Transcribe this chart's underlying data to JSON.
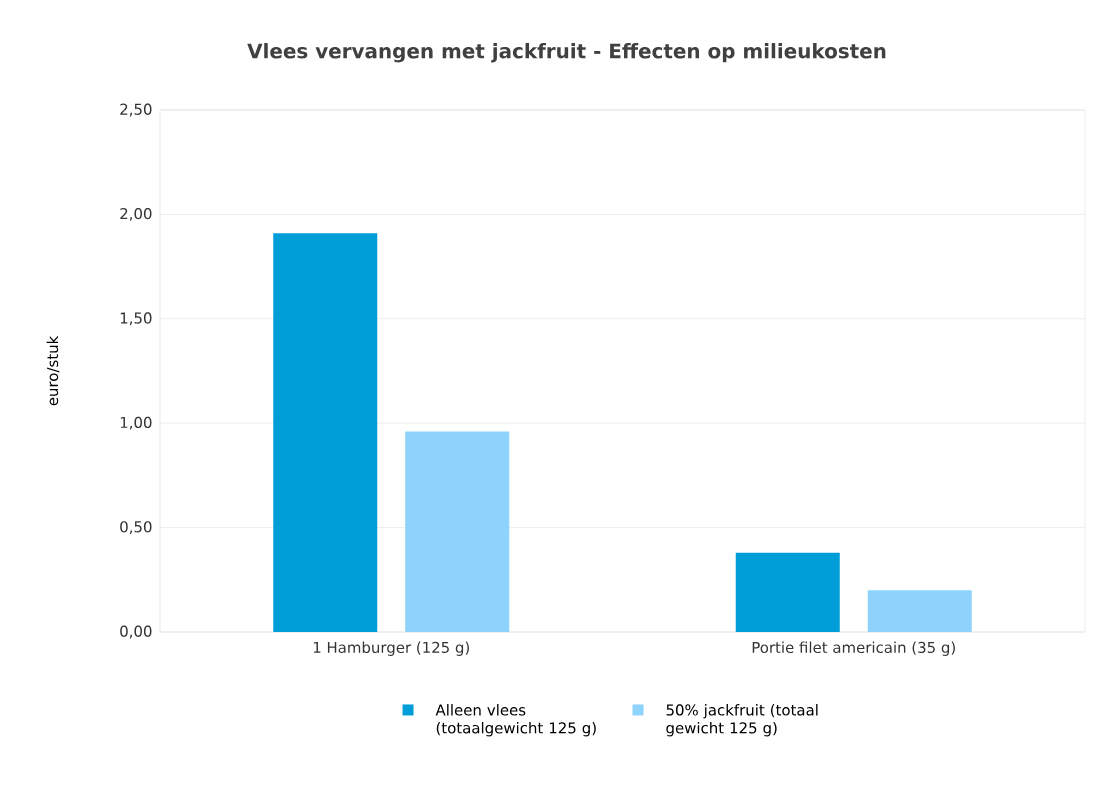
{
  "chart_data": {
    "type": "bar",
    "title": "Vlees vervangen met jackfruit - Effecten op milieukosten",
    "ylabel": "euro/stuk",
    "categories": [
      "1 Hamburger (125 g)",
      "Portie filet americain (35 g)"
    ],
    "series": [
      {
        "name": "Alleen vlees (totaalgewicht 125 g)",
        "color": "#009ed8",
        "values": [
          1.91,
          0.38
        ]
      },
      {
        "name": "50% jackfruit (totaal gewicht 125 g)",
        "color": "#8dd3fb",
        "values": [
          0.96,
          0.2
        ]
      }
    ],
    "ylim": [
      0,
      2.5
    ],
    "yticks": [
      {
        "value": 0,
        "label": "0,00"
      },
      {
        "value": 0.5,
        "label": "0,50"
      },
      {
        "value": 1,
        "label": "1,00"
      },
      {
        "value": 1.5,
        "label": "1,50"
      },
      {
        "value": 2,
        "label": "2,00"
      },
      {
        "value": 2.5,
        "label": "2,50"
      }
    ],
    "grid": "y",
    "legend": "bottom"
  }
}
